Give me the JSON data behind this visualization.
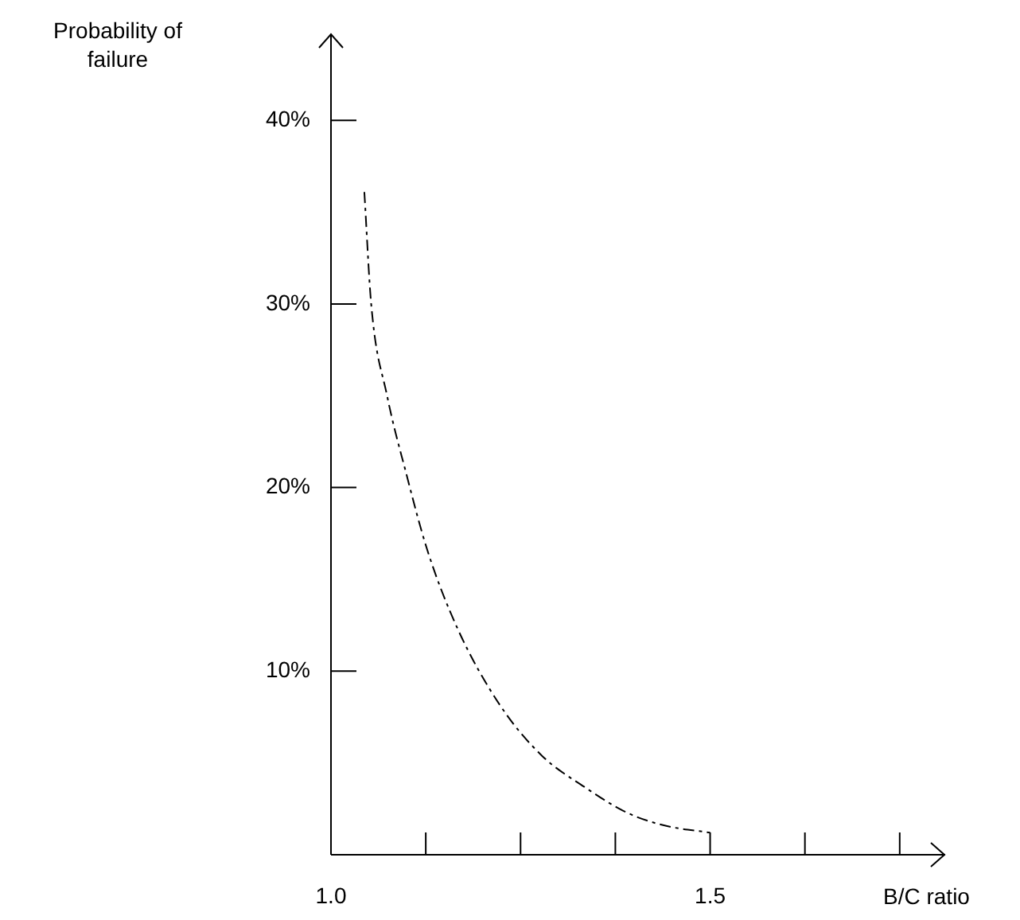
{
  "chart_data": {
    "type": "line",
    "xlabel": "B/C ratio",
    "ylabel": "Probability of failure",
    "xlim": [
      1.0,
      1.81
    ],
    "ylim": [
      0,
      44.7
    ],
    "xticks": [
      {
        "value": 1.0,
        "label": "1.0"
      },
      {
        "value": 1.125,
        "label": null
      },
      {
        "value": 1.25,
        "label": null
      },
      {
        "value": 1.375,
        "label": null
      },
      {
        "value": 1.5,
        "label": "1.5"
      },
      {
        "value": 1.625,
        "label": null
      },
      {
        "value": 1.75,
        "label": null
      }
    ],
    "yticks": [
      {
        "value": 10,
        "label": "10%"
      },
      {
        "value": 20,
        "label": "20%"
      },
      {
        "value": 30,
        "label": "30%"
      },
      {
        "value": 40,
        "label": "40%"
      }
    ],
    "series": [
      {
        "color": "#000000",
        "x": [
          1.044,
          1.053,
          1.074,
          1.099,
          1.127,
          1.166,
          1.222,
          1.278,
          1.334,
          1.39,
          1.439,
          1.5
        ],
        "values": [
          36.1,
          30.0,
          25.0,
          20.8,
          16.6,
          12.4,
          8.2,
          5.4,
          3.7,
          2.3,
          1.6,
          1.2
        ]
      }
    ],
    "grid": false,
    "legend": false,
    "marker": "none",
    "line_style": "dashed"
  }
}
